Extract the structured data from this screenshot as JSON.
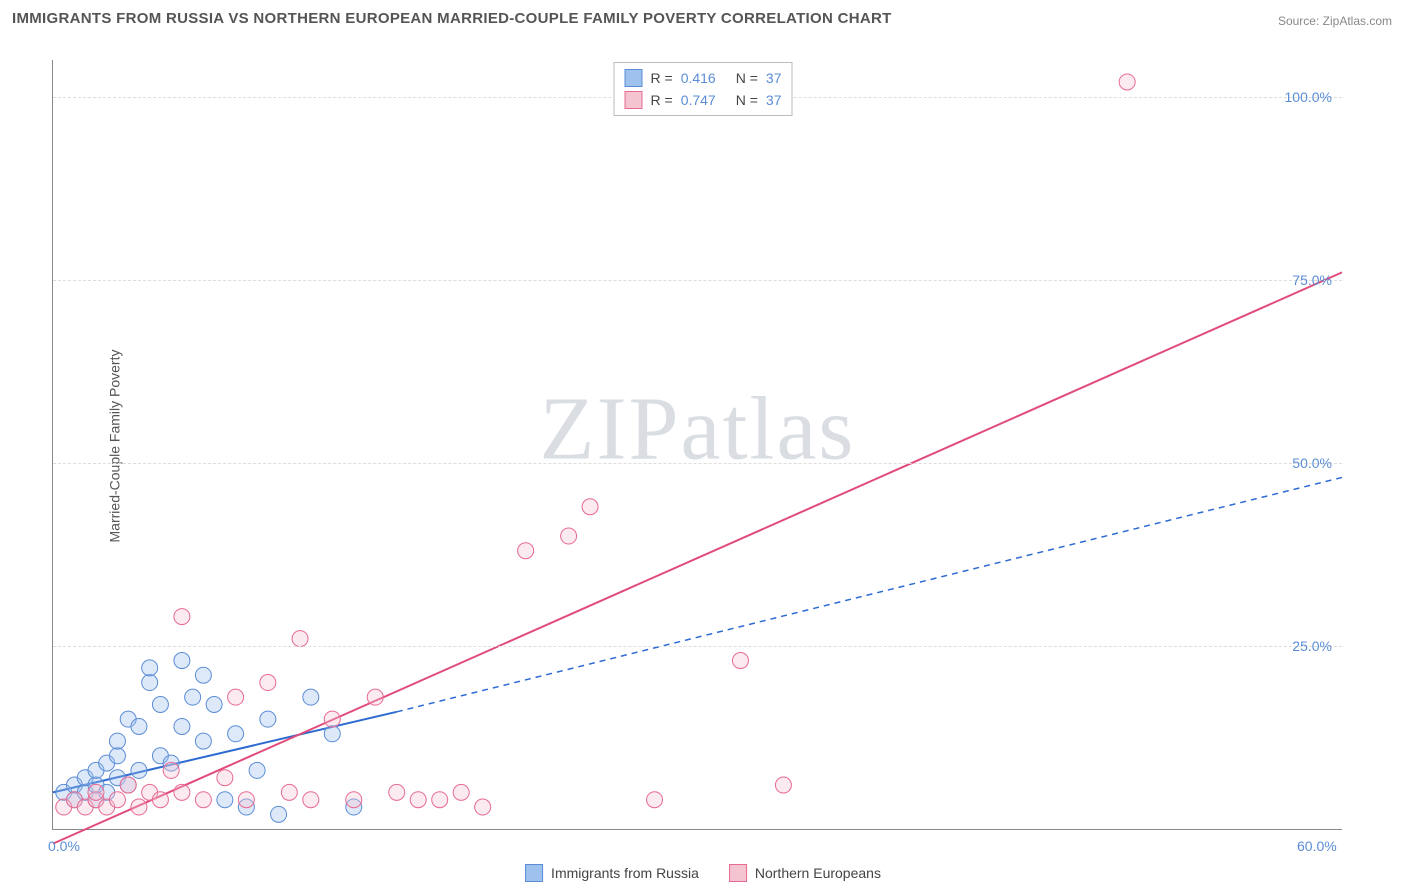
{
  "title": "IMMIGRANTS FROM RUSSIA VS NORTHERN EUROPEAN MARRIED-COUPLE FAMILY POVERTY CORRELATION CHART",
  "source": "Source: ZipAtlas.com",
  "y_axis_label": "Married-Couple Family Poverty",
  "watermark": "ZIPatlas",
  "chart": {
    "type": "scatter",
    "xlim": [
      0,
      60
    ],
    "ylim": [
      0,
      105
    ],
    "x_tick_labels": {
      "0": "0.0%",
      "60": "60.0%"
    },
    "y_ticks": [
      25,
      50,
      75,
      100
    ],
    "y_tick_labels": {
      "25": "25.0%",
      "50": "50.0%",
      "75": "75.0%",
      "100": "100.0%"
    },
    "background_color": "#ffffff",
    "grid_color": "#dddddd",
    "point_radius": 8,
    "point_opacity": 0.35,
    "series": [
      {
        "name": "Immigrants from Russia",
        "color_fill": "#9ec1ee",
        "color_stroke": "#5b8dd6",
        "r_value": "0.416",
        "n_value": "37",
        "regression": {
          "solid": {
            "x1": 0,
            "y1": 5,
            "x2": 16,
            "y2": 16
          },
          "dashed": {
            "x1": 16,
            "y1": 16,
            "x2": 60,
            "y2": 48
          },
          "color": "#2e6bd1",
          "width": 2
        },
        "points": [
          [
            0.5,
            5
          ],
          [
            1,
            4
          ],
          [
            1,
            6
          ],
          [
            1.5,
            5
          ],
          [
            1.5,
            7
          ],
          [
            2,
            4
          ],
          [
            2,
            6
          ],
          [
            2,
            8
          ],
          [
            2.5,
            5
          ],
          [
            2.5,
            9
          ],
          [
            3,
            7
          ],
          [
            3,
            10
          ],
          [
            3,
            12
          ],
          [
            3.5,
            6
          ],
          [
            3.5,
            15
          ],
          [
            4,
            8
          ],
          [
            4,
            14
          ],
          [
            4.5,
            20
          ],
          [
            4.5,
            22
          ],
          [
            5,
            10
          ],
          [
            5,
            17
          ],
          [
            5.5,
            9
          ],
          [
            6,
            14
          ],
          [
            6,
            23
          ],
          [
            6.5,
            18
          ],
          [
            7,
            12
          ],
          [
            7,
            21
          ],
          [
            7.5,
            17
          ],
          [
            8,
            4
          ],
          [
            8.5,
            13
          ],
          [
            9,
            3
          ],
          [
            9.5,
            8
          ],
          [
            10,
            15
          ],
          [
            10.5,
            2
          ],
          [
            12,
            18
          ],
          [
            13,
            13
          ],
          [
            14,
            3
          ]
        ]
      },
      {
        "name": "Northern Europeans",
        "color_fill": "#f4c4d1",
        "color_stroke": "#e86a92",
        "r_value": "0.747",
        "n_value": "37",
        "regression": {
          "solid": {
            "x1": 0,
            "y1": -2,
            "x2": 60,
            "y2": 76
          },
          "color": "#e14b7a",
          "width": 2
        },
        "points": [
          [
            0.5,
            3
          ],
          [
            1,
            4
          ],
          [
            1.5,
            3
          ],
          [
            2,
            4
          ],
          [
            2,
            5
          ],
          [
            2.5,
            3
          ],
          [
            3,
            4
          ],
          [
            3.5,
            6
          ],
          [
            4,
            3
          ],
          [
            4.5,
            5
          ],
          [
            5,
            4
          ],
          [
            5.5,
            8
          ],
          [
            6,
            5
          ],
          [
            6,
            29
          ],
          [
            7,
            4
          ],
          [
            8,
            7
          ],
          [
            8.5,
            18
          ],
          [
            9,
            4
          ],
          [
            10,
            20
          ],
          [
            11,
            5
          ],
          [
            11.5,
            26
          ],
          [
            12,
            4
          ],
          [
            13,
            15
          ],
          [
            14,
            4
          ],
          [
            15,
            18
          ],
          [
            16,
            5
          ],
          [
            17,
            4
          ],
          [
            18,
            4
          ],
          [
            19,
            5
          ],
          [
            20,
            3
          ],
          [
            22,
            38
          ],
          [
            24,
            40
          ],
          [
            25,
            44
          ],
          [
            28,
            4
          ],
          [
            32,
            23
          ],
          [
            34,
            6
          ],
          [
            50,
            102
          ]
        ]
      }
    ]
  },
  "legend_bottom": [
    {
      "label": "Immigrants from Russia",
      "fill": "#9ec1ee",
      "stroke": "#5b8dd6"
    },
    {
      "label": "Northern Europeans",
      "fill": "#f4c4d1",
      "stroke": "#e86a92"
    }
  ]
}
